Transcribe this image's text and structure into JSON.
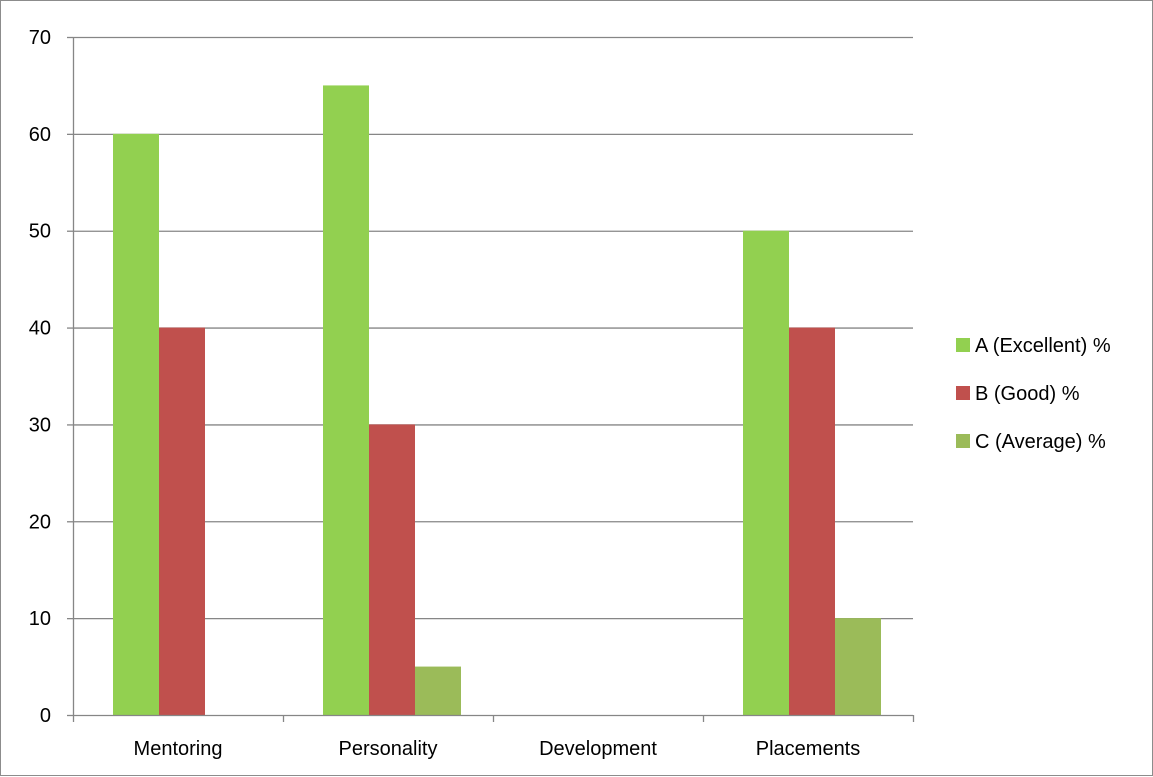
{
  "chart_data": {
    "type": "bar",
    "categories": [
      "Mentoring",
      "Personality",
      "Development",
      "Placements"
    ],
    "series": [
      {
        "name": "A (Excellent) %",
        "values": [
          60,
          65,
          0,
          50
        ],
        "color": "#92d050"
      },
      {
        "name": "B (Good) %",
        "values": [
          40,
          30,
          0,
          40
        ],
        "color": "#c0504d"
      },
      {
        "name": "C (Average) %",
        "values": [
          0,
          5,
          0,
          10
        ],
        "color": "#9bbb59"
      }
    ],
    "ylim": [
      0,
      70
    ],
    "yticks": [
      0,
      10,
      20,
      30,
      40,
      50,
      60,
      70
    ],
    "grid": true,
    "legend_position": "right"
  }
}
